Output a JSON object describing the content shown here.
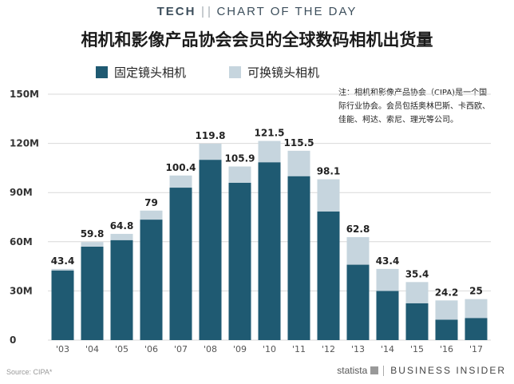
{
  "header": {
    "tech": "TECH",
    "chart_of_the_day": "CHART OF THE DAY"
  },
  "note": "注：相机和影像产品协会（CIPA)是一个国际行业协会。会员包括奥林巴斯、卡西欧、佳能、柯达、索尼、理光等公司。",
  "footer": {
    "source": "Source: CIPA*",
    "statista": "statista",
    "brand": "BUSINESS INSIDER"
  },
  "chart_data": {
    "type": "bar",
    "stacked": true,
    "title": "相机和影像产品协会会员的全球数码相机出货量",
    "categories": [
      "'03",
      "'04",
      "'05",
      "'06",
      "'07",
      "'08",
      "'09",
      "'10",
      "'11",
      "'12",
      "'13",
      "'14",
      "'15",
      "'16",
      "'17"
    ],
    "series": [
      {
        "name": "固定镜头相机",
        "color": "#1f5a72",
        "values": [
          42.5,
          57.0,
          61.0,
          73.5,
          93.0,
          110.0,
          96.0,
          108.5,
          100.0,
          78.5,
          46.0,
          30.0,
          22.5,
          12.5,
          13.5
        ]
      },
      {
        "name": "可换镜头相机",
        "color": "#c6d5de",
        "values": [
          0.9,
          2.8,
          3.8,
          5.5,
          7.4,
          9.8,
          9.9,
          13.0,
          15.5,
          19.6,
          16.8,
          13.4,
          12.9,
          11.7,
          11.5
        ]
      }
    ],
    "totals": [
      43.4,
      59.8,
      64.8,
      79,
      100.4,
      119.8,
      105.9,
      121.5,
      115.5,
      98.1,
      62.8,
      43.4,
      35.4,
      24.2,
      25
    ],
    "total_labels": [
      "43.4",
      "59.8",
      "64.8",
      "79",
      "100.4",
      "119.8",
      "105.9",
      "121.5",
      "115.5",
      "98.1",
      "62.8",
      "43.4",
      "35.4",
      "24.2",
      "25"
    ],
    "y_ticks": [
      0,
      30,
      60,
      90,
      120,
      150
    ],
    "y_tick_labels": [
      "0",
      "30M",
      "60M",
      "90M",
      "120M",
      "150M"
    ],
    "ylim": [
      0,
      150
    ],
    "grid": true,
    "legend_position": "top-left"
  }
}
